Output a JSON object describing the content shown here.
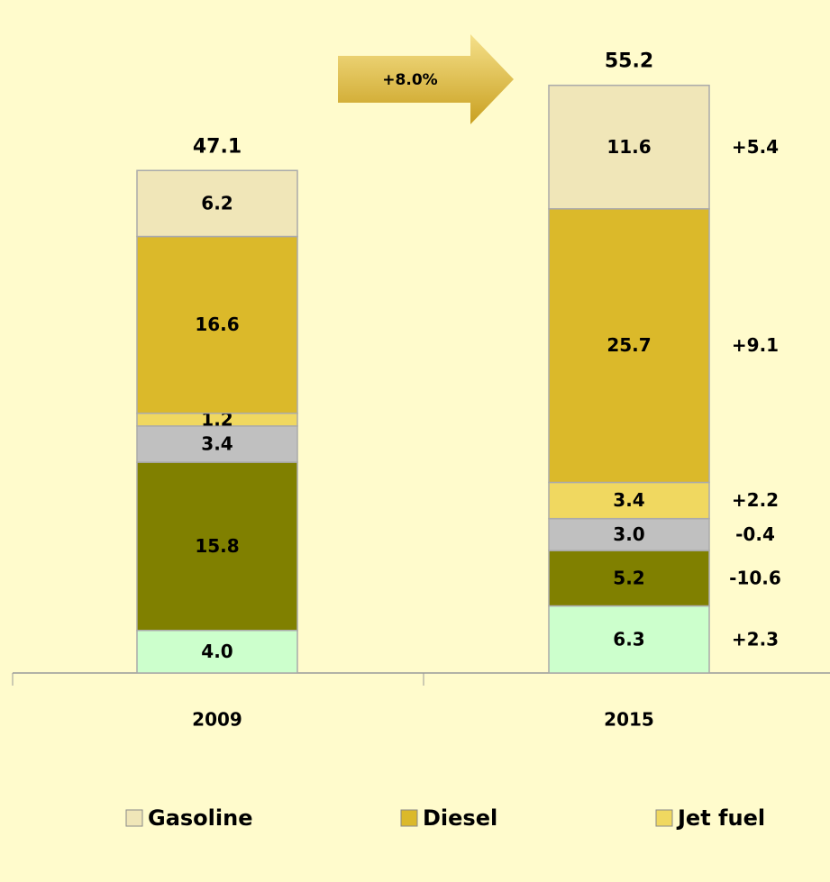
{
  "chart_data": {
    "type": "stacked_bar",
    "categories": [
      "2009",
      "2015"
    ],
    "series": [
      {
        "color": "#ccffcc",
        "values": [
          4.0,
          6.3
        ],
        "value_labels": [
          "4.0",
          "6.3"
        ]
      },
      {
        "color": "#808000",
        "values": [
          15.8,
          5.2
        ],
        "value_labels": [
          "15.8",
          "5.2"
        ]
      },
      {
        "color": "#c0c0c0",
        "values": [
          3.4,
          3.0
        ],
        "value_labels": [
          "3.4",
          "3.0"
        ]
      },
      {
        "name": "Jet fuel",
        "color": "#f0d860",
        "values": [
          1.2,
          3.4
        ],
        "value_labels": [
          "1.2",
          "3.4"
        ]
      },
      {
        "name": "Diesel",
        "color": "#dbb92a",
        "values": [
          16.6,
          25.7
        ],
        "value_labels": [
          "16.6",
          "25.7"
        ]
      },
      {
        "name": "Gasoline",
        "color": "#f0e6b8",
        "values": [
          6.2,
          11.6
        ],
        "value_labels": [
          "6.2",
          "11.6"
        ]
      }
    ],
    "totals": [
      "47.1",
      "55.2"
    ],
    "changes": {
      "values": [
        2.3,
        -10.6,
        -0.4,
        2.2,
        9.1,
        5.4
      ],
      "value_labels": [
        "+2.3",
        "-10.6",
        "-0.4",
        "+2.2",
        "+9.1",
        "+5.4"
      ]
    },
    "annotation": "+8.0%",
    "ylim": [
      0,
      60
    ]
  }
}
